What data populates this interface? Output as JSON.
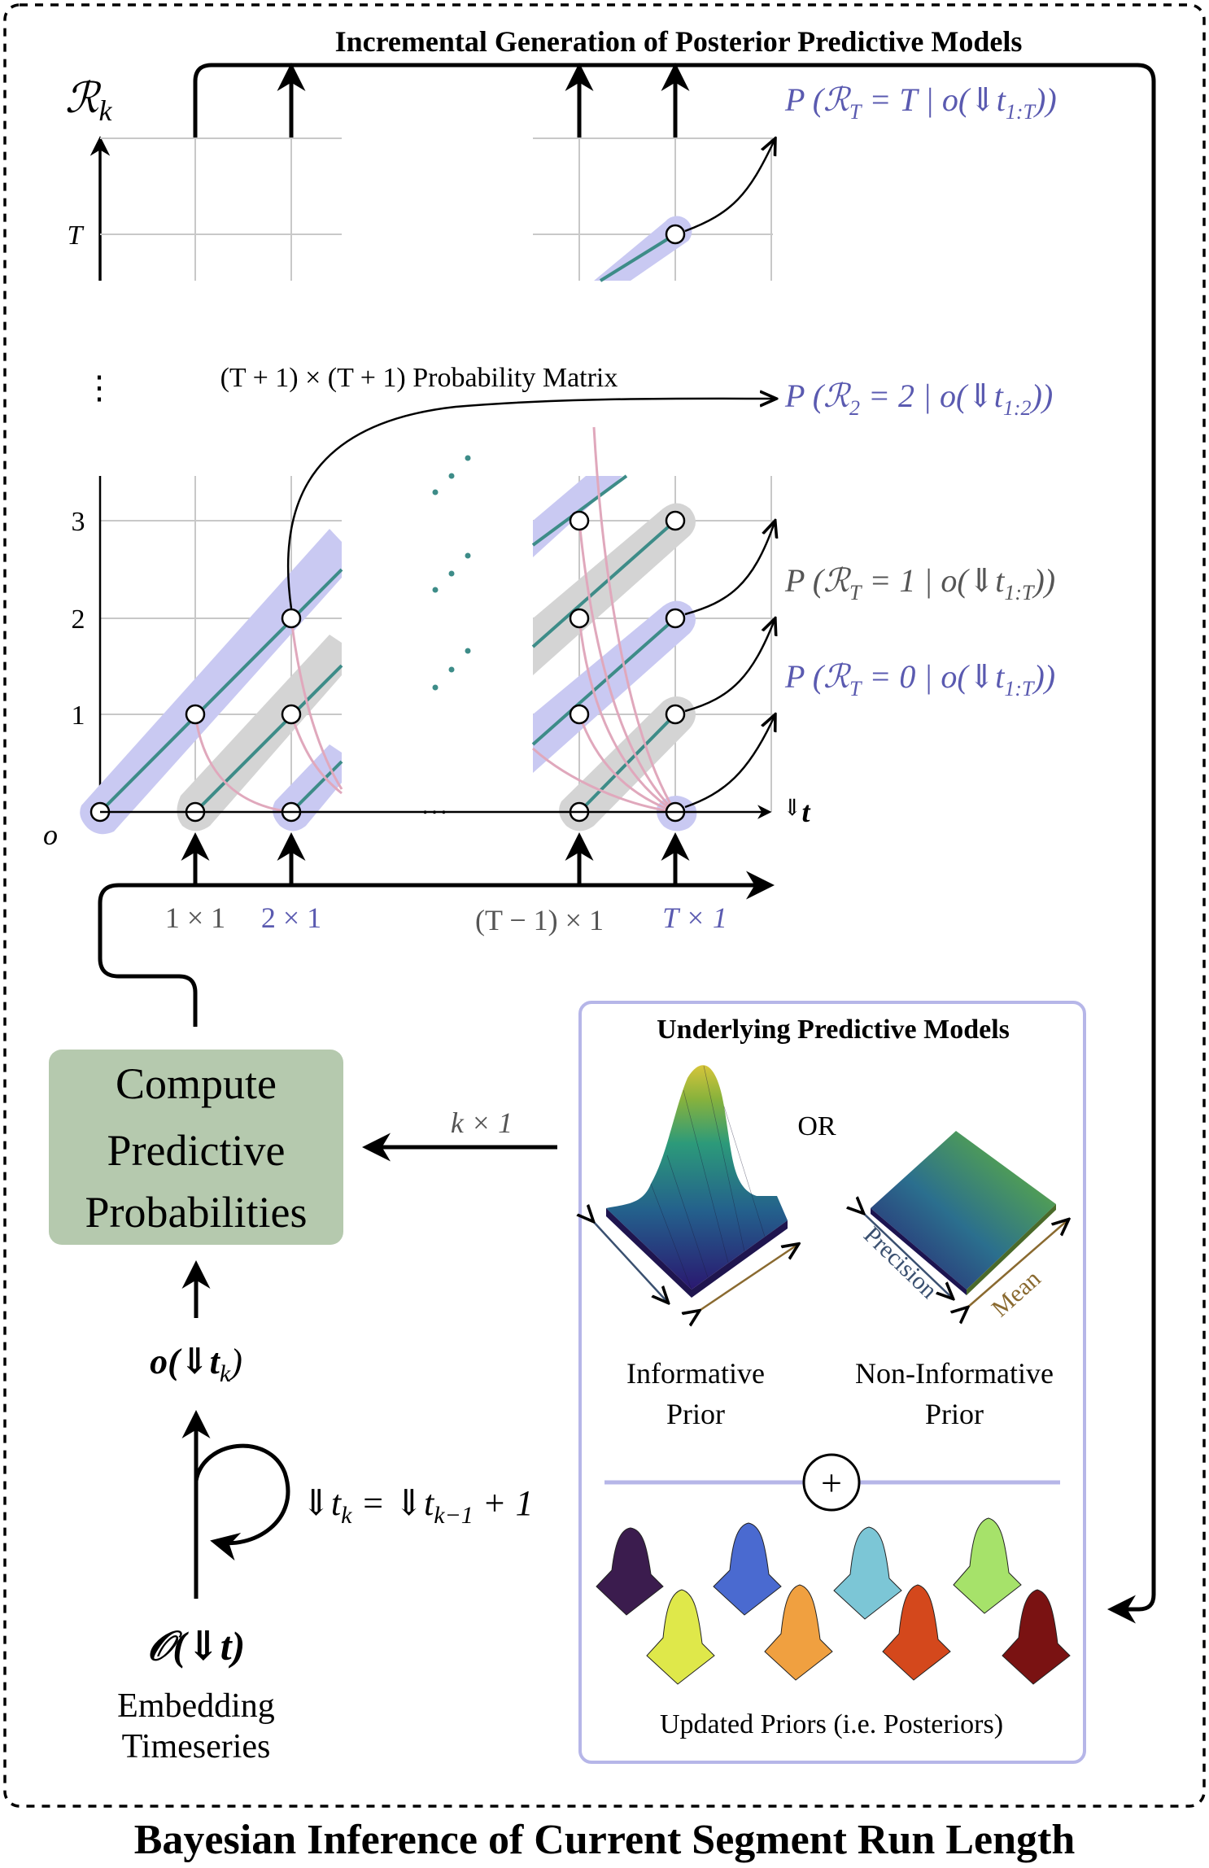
{
  "colors": {
    "accent_purple": "#5a5ab0",
    "gray_text": "#555555",
    "teal_line": "#3d8c88",
    "pink_line": "#e0a8bc",
    "purple_band": "#c9c9f2",
    "gray_band": "#d4d4d4",
    "compute_box": "#b5c9ae",
    "models_border": "#b6b6e8"
  },
  "top_header": "Incremental Generation of Posterior Predictive Models",
  "axis": {
    "rk_label": "ℛ",
    "rk_sub": "k",
    "t_row": "T",
    "vdots": "⋮",
    "tick_3": "3",
    "tick_2": "2",
    "tick_1": "1",
    "origin": "o",
    "hdots": "…",
    "t_axis_label": "⇓",
    "t_axis_bold": "t"
  },
  "matrix_label": "(T + 1) × (T + 1) Probability Matrix",
  "probabilities": {
    "p_top": {
      "prefix": "P (ℛ",
      "sub": "T",
      "mid": " = T | o(⇓t",
      "sub2": "1:T",
      "suffix": "))"
    },
    "p_2": {
      "prefix": "P (ℛ",
      "sub": "2",
      "mid": " = 2 | o(⇓t",
      "sub2": "1:2",
      "suffix": "))"
    },
    "p_1": {
      "prefix": "P (ℛ",
      "sub": "T",
      "mid": " = 1 | o(⇓t",
      "sub2": "1:T",
      "suffix": "))"
    },
    "p_0": {
      "prefix": "P (ℛ",
      "sub": "T",
      "mid": " = 0 | o(⇓t",
      "sub2": "1:T",
      "suffix": "))"
    }
  },
  "bottom_labels": {
    "one_by_one": "1 × 1",
    "two_by_one": "2 × 1",
    "tminus_by_one": "(T − 1) × 1",
    "t_by_one": "T × 1"
  },
  "compute_box": {
    "line1": "Compute",
    "line2": "Predictive",
    "line3": "Probabilities"
  },
  "k_by_one": "k × 1",
  "obs": {
    "text": "o(⇓t",
    "sub": "k",
    "close": ")"
  },
  "recurrence": {
    "lhs": "⇓t",
    "lhs_sub": "k",
    "mid": " = ⇓t",
    "rhs_sub": "k−1",
    "rhs": " + 1"
  },
  "timeseries": {
    "symbol": "𝒪(⇓t)",
    "line1": "Embedding",
    "line2": "Timeseries"
  },
  "models": {
    "title": "Underlying Predictive Models",
    "or": "OR",
    "precision": "Precision",
    "mean": "Mean",
    "informative_1": "Informative",
    "informative_2": "Prior",
    "noninformative_1": "Non-Informative",
    "noninformative_2": "Prior",
    "plus": "+",
    "updated": "Updated Priors (i.e. Posteriors)"
  },
  "footer": "Bayesian Inference of Current Segment Run Length"
}
